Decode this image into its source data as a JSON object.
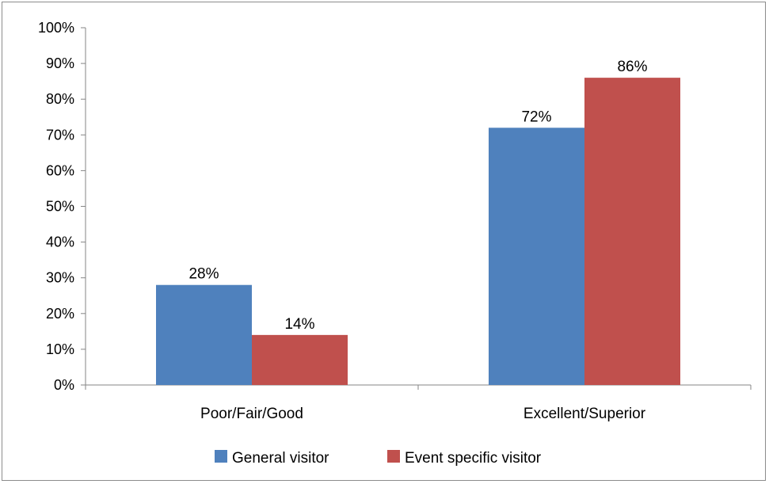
{
  "chart_data": {
    "type": "bar",
    "categories": [
      "Poor/Fair/Good",
      "Excellent/Superior"
    ],
    "series": [
      {
        "name": "General visitor",
        "values": [
          28,
          72
        ],
        "labels": [
          "28%",
          "72%"
        ],
        "color": "#4f81bd"
      },
      {
        "name": "Event specific visitor",
        "values": [
          14,
          86
        ],
        "labels": [
          "14%",
          "86%"
        ],
        "color": "#c0504d"
      }
    ],
    "ylim": [
      0,
      100
    ],
    "yticks": [
      "0%",
      "10%",
      "20%",
      "30%",
      "40%",
      "50%",
      "60%",
      "70%",
      "80%",
      "90%",
      "100%"
    ],
    "grid": false,
    "legend": "bottom"
  }
}
